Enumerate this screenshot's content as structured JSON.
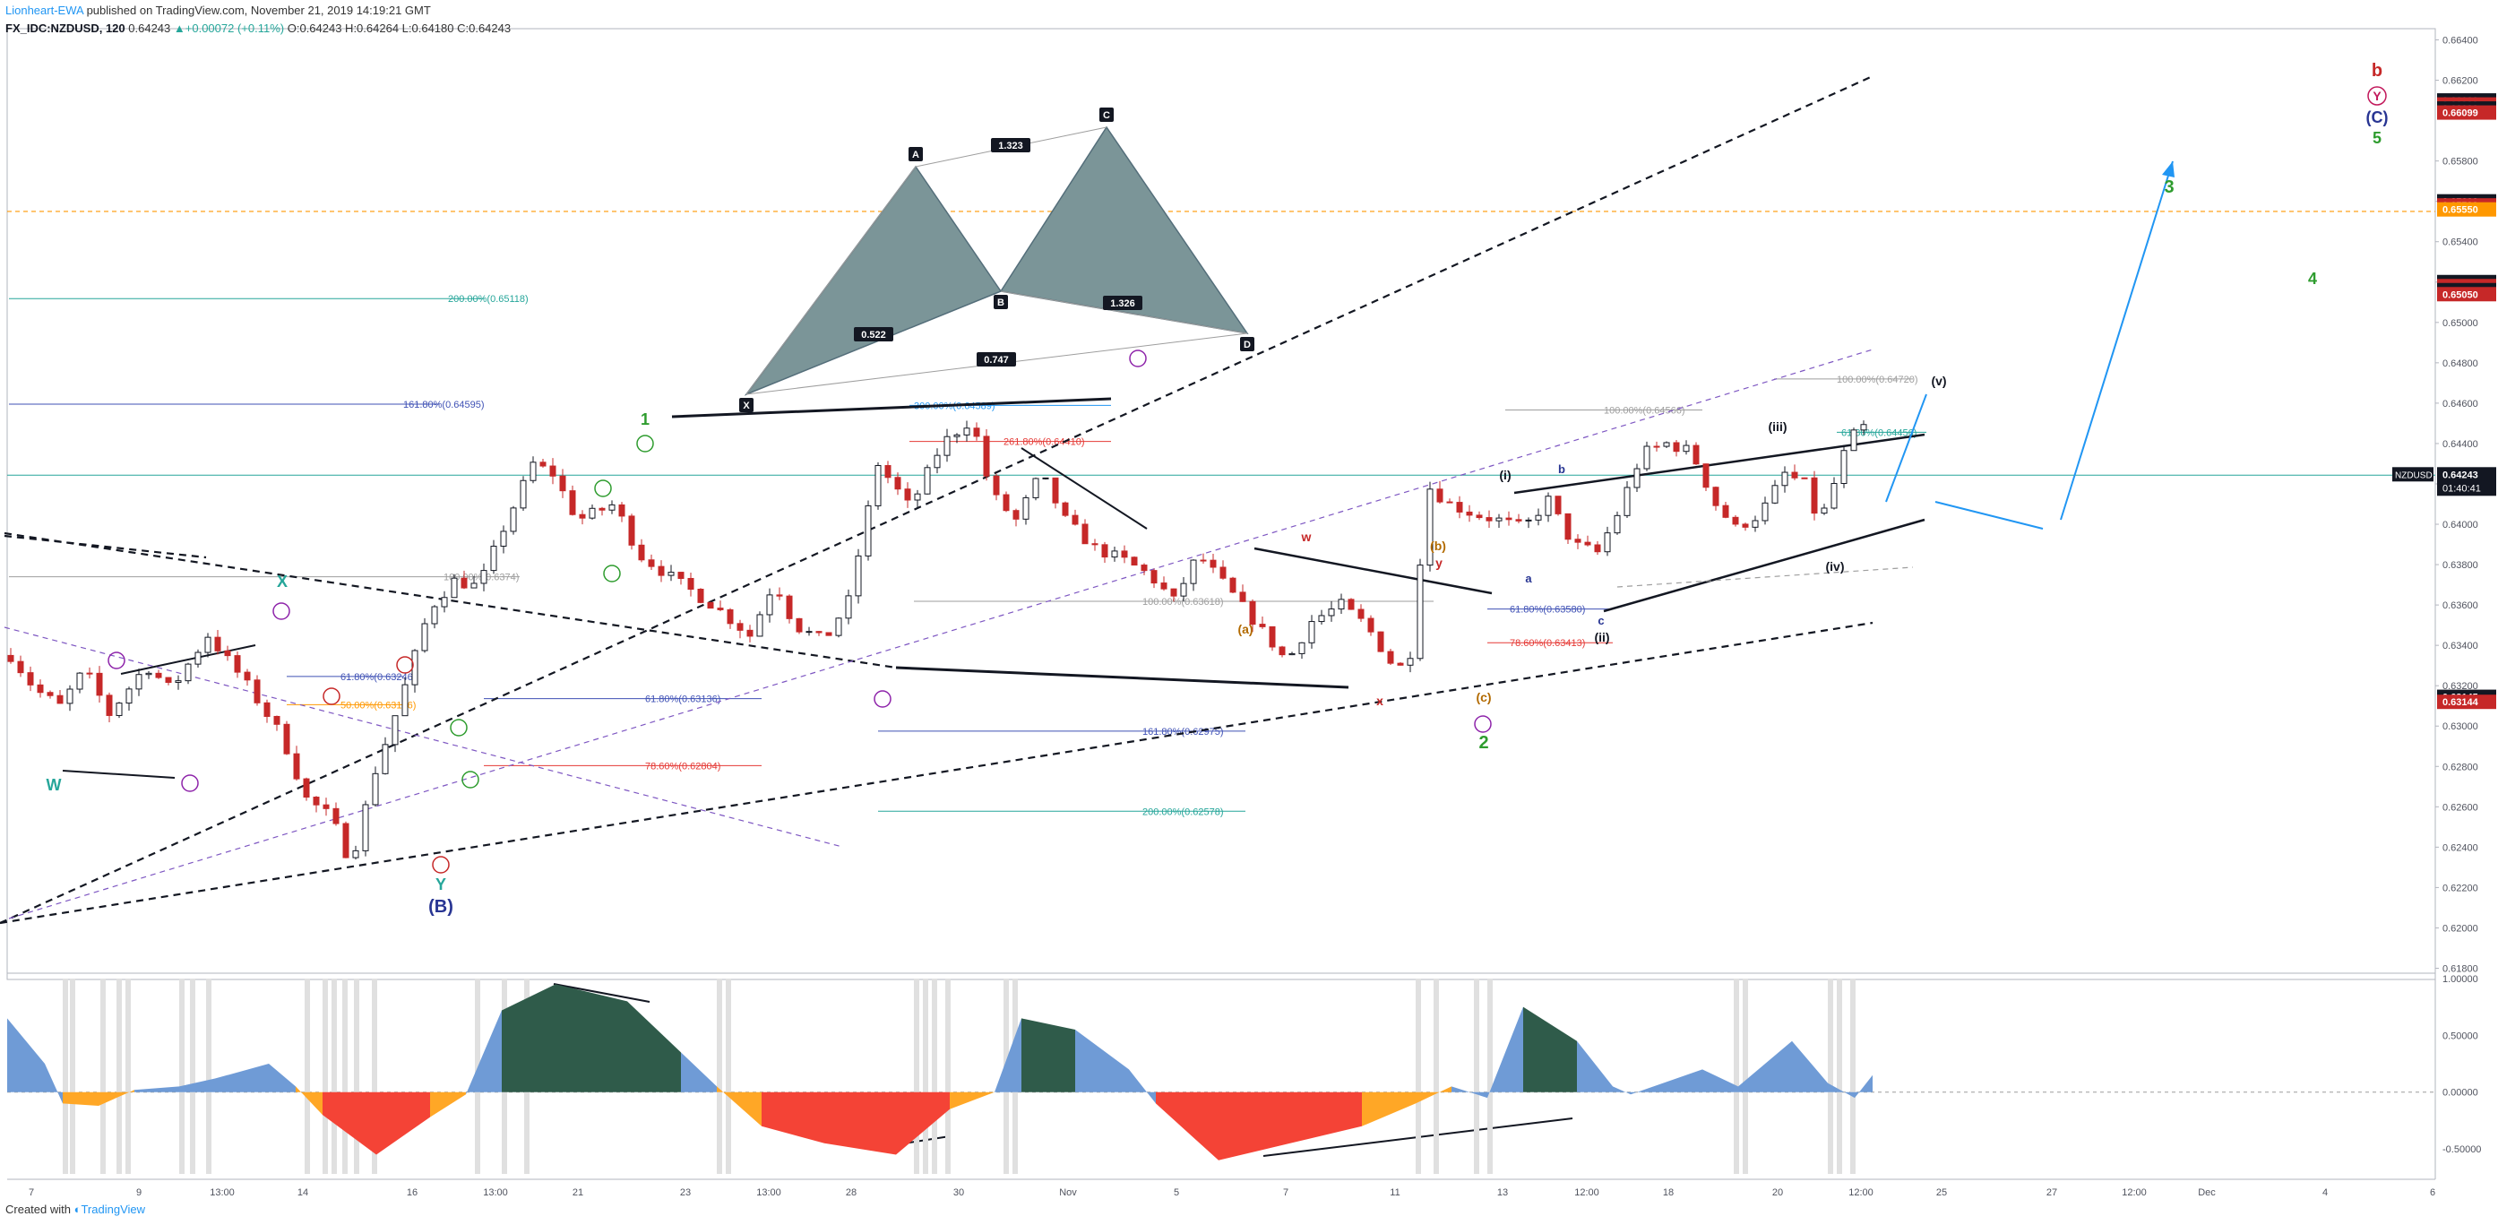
{
  "header": {
    "user": "Lionheart-EWA",
    "published": "published on TradingView.com, November 21, 2019 14:19:21 GMT",
    "symbol": "FX_IDC:NZDUSD, 120",
    "last": "0.64243",
    "change_arrow": "▲",
    "change": "+0.00072 (+0.11%)",
    "ohlc": "O:0.64243 H:0.64264 L:0.64180 C:0.64243"
  },
  "footer": {
    "created_with": "Created with",
    "brand": "TradingView"
  },
  "colors": {
    "up_candle": "#131722",
    "down_candle": "#c62828",
    "wave_green": "#2e9c2e",
    "wave_blue": "#283593",
    "wave_orange": "#b26a00",
    "wave_red": "#b71c1c",
    "wave_purple": "#8e24aa",
    "projection": "#2196f3",
    "osc_dark": "#2f5b4a",
    "osc_blue": "#6f9bd6",
    "osc_red": "#f44336",
    "osc_orange": "#ffa726"
  },
  "chart_data": {
    "type": "candlestick",
    "symbol": "NZDUSD",
    "price_axis": {
      "ticks": [
        "0.66400",
        "0.66200",
        "0.65800",
        "0.65600",
        "0.65400",
        "0.65200",
        "0.65000",
        "0.64800",
        "0.64600",
        "0.64400",
        "0.64200",
        "0.64000",
        "0.63800",
        "0.63600",
        "0.63400",
        "0.63200",
        "0.63000",
        "0.62800",
        "0.62600",
        "0.62400",
        "0.62200",
        "0.62000",
        "0.61800"
      ],
      "range": [
        0.6178,
        0.6642
      ]
    },
    "price_labels": [
      {
        "text": "0.66100",
        "style": "black"
      },
      {
        "text": "0.66099",
        "style": "red"
      },
      {
        "text": "0.66100",
        "style": "black"
      },
      {
        "text": "0.66099",
        "style": "red"
      },
      {
        "text": "0.65600",
        "style": "black"
      },
      {
        "text": "0.65599",
        "style": "red"
      },
      {
        "text": "0.65550",
        "style": "orange"
      },
      {
        "text": "0.65200",
        "style": "black"
      },
      {
        "text": "0.65199",
        "style": "red"
      },
      {
        "text": "0.65050",
        "style": "black"
      },
      {
        "text": "0.65050",
        "style": "red"
      },
      {
        "text": "0.63145",
        "style": "black"
      },
      {
        "text": "0.63144",
        "style": "red"
      }
    ],
    "current": {
      "symbol_label": "NZDUSD",
      "price": "0.64243",
      "countdown": "01:40:41"
    },
    "time_axis": [
      "7",
      "9",
      "13:00",
      "14",
      "16",
      "13:00",
      "21",
      "23",
      "13:00",
      "28",
      "30",
      "Nov",
      "5",
      "7",
      "11",
      "13",
      "12:00",
      "18",
      "20",
      "12:00",
      "25",
      "27",
      "12:00",
      "Dec",
      "4",
      "6"
    ],
    "fib_levels": [
      {
        "label": "200.00%(0.65118)",
        "color": "#26a69a",
        "price": 0.65118
      },
      {
        "label": "161.80%(0.64595)",
        "color": "#3f51b5",
        "price": 0.64595
      },
      {
        "label": "100.00%(0.6374)",
        "color": "#9e9e9e",
        "price": 0.6374
      },
      {
        "label": "61.80%(0.63246)",
        "color": "#3f51b5",
        "price": 0.63246
      },
      {
        "label": "50.00%(0.63106)",
        "color": "#ff9800",
        "price": 0.63106
      },
      {
        "label": "61.80%(0.63136)",
        "color": "#3f51b5",
        "price": 0.63136
      },
      {
        "label": "78.60%(0.62804)",
        "color": "#e53935",
        "price": 0.62804
      },
      {
        "label": "300.00%(0.64589)",
        "color": "#2196f3",
        "price": 0.64589
      },
      {
        "label": "261.80%(0.64410)",
        "color": "#e53935",
        "price": 0.6441
      },
      {
        "label": "100.00%(0.63618)",
        "color": "#9e9e9e",
        "price": 0.63618
      },
      {
        "label": "161.80%(0.62975)",
        "color": "#3f51b5",
        "price": 0.62975
      },
      {
        "label": "200.00%(0.62578)",
        "color": "#26a69a",
        "price": 0.62578
      },
      {
        "label": "100.00%(0.64566)",
        "color": "#9e9e9e",
        "price": 0.64566
      },
      {
        "label": "100.00%(0.64720)",
        "color": "#9e9e9e",
        "price": 0.6472
      },
      {
        "label": "61.80%(0.64456)",
        "color": "#26a69a",
        "price": 0.64456
      },
      {
        "label": "61.80%(0.63580)",
        "color": "#3f51b5",
        "price": 0.6358
      },
      {
        "label": "78.60%(0.63413)",
        "color": "#e53935",
        "price": 0.63413
      }
    ],
    "harmonic_pattern": {
      "points": [
        "X",
        "A",
        "B",
        "C",
        "D"
      ],
      "ratios": [
        "0.522",
        "1.323",
        "1.326",
        "0.747"
      ]
    },
    "wave_labels": [
      {
        "text": "W",
        "color": "#26a69a"
      },
      {
        "text": "X",
        "color": "#26a69a"
      },
      {
        "text": "Y",
        "color": "#26a69a"
      },
      {
        "text": "(B)",
        "color": "#283593"
      },
      {
        "text": "1",
        "color": "#2e9c2e"
      },
      {
        "text": "2",
        "color": "#2e9c2e"
      },
      {
        "text": "3",
        "color": "#2e9c2e"
      },
      {
        "text": "4",
        "color": "#2e9c2e"
      },
      {
        "text": "5",
        "color": "#2e9c2e"
      },
      {
        "text": "(C)",
        "color": "#283593"
      },
      {
        "text": "b",
        "color": "#c62828"
      },
      {
        "text": "Y",
        "color": "#c2185b"
      },
      {
        "text": "(i)",
        "color": "#131722"
      },
      {
        "text": "(ii)",
        "color": "#131722"
      },
      {
        "text": "(iii)",
        "color": "#131722"
      },
      {
        "text": "(iv)",
        "color": "#131722"
      },
      {
        "text": "(v)",
        "color": "#131722"
      },
      {
        "text": "(a)",
        "color": "#b26a00"
      },
      {
        "text": "(b)",
        "color": "#b26a00"
      },
      {
        "text": "(c)",
        "color": "#b26a00"
      },
      {
        "text": "w",
        "color": "#c62828"
      },
      {
        "text": "x",
        "color": "#c62828"
      },
      {
        "text": "y",
        "color": "#c62828"
      },
      {
        "text": "a",
        "color": "#283593"
      },
      {
        "text": "b",
        "color": "#283593"
      },
      {
        "text": "c",
        "color": "#283593"
      }
    ],
    "oscillator": {
      "ticks": [
        "1.00000",
        "0.50000",
        "0.00000",
        "-0.50000"
      ],
      "range": [
        -0.72,
        1.0
      ]
    }
  }
}
